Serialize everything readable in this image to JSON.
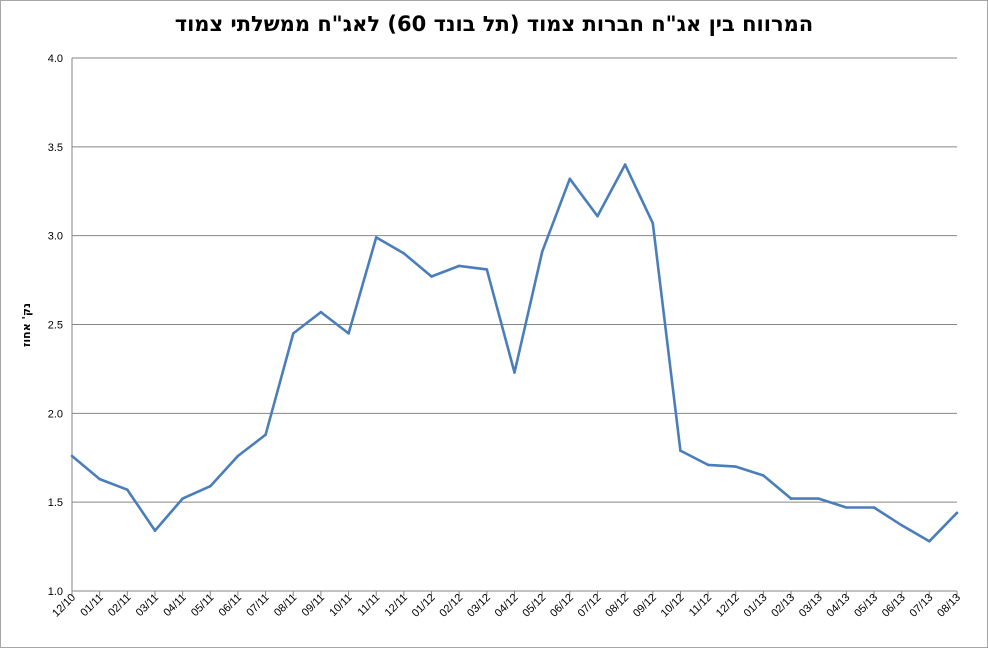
{
  "chart_data": {
    "type": "line",
    "title": "המרווח בין אג\"ח חברות צמוד (תל בונד 60) לאג\"ח ממשלתי צמוד",
    "xlabel": "",
    "ylabel": "נק' אחוז",
    "ylim": [
      1.0,
      4.0
    ],
    "yticks": [
      "1.0",
      "1.5",
      "2.0",
      "2.5",
      "3.0",
      "3.5",
      "4.0"
    ],
    "grid": true,
    "legend": "none",
    "color": "#4a7ebb",
    "categories": [
      "12/10",
      "01/11",
      "02/11",
      "03/11",
      "04/11",
      "05/11",
      "06/11",
      "07/11",
      "08/11",
      "09/11",
      "10/11",
      "11/11",
      "12/11",
      "01/12",
      "02/12",
      "03/12",
      "04/12",
      "05/12",
      "06/12",
      "07/12",
      "08/12",
      "09/12",
      "10/12",
      "11/12",
      "12/12",
      "01/13",
      "02/13",
      "03/13",
      "04/13",
      "05/13",
      "06/13",
      "07/13",
      "08/13"
    ],
    "values": [
      1.76,
      1.63,
      1.57,
      1.34,
      1.52,
      1.59,
      1.76,
      1.88,
      2.45,
      2.57,
      2.45,
      2.99,
      2.9,
      2.77,
      2.83,
      2.81,
      2.23,
      2.91,
      3.32,
      3.11,
      3.4,
      3.07,
      1.79,
      1.71,
      1.7,
      1.65,
      1.52,
      1.52,
      1.47,
      1.47,
      1.37,
      1.28,
      1.44
    ]
  }
}
